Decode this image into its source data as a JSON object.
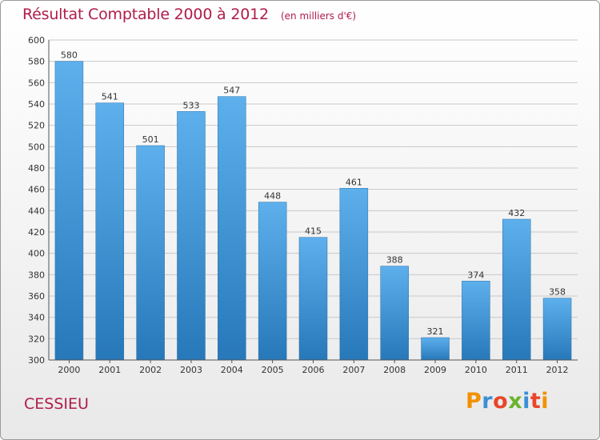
{
  "header": {
    "title": "Résultat Comptable 2000 à 2012",
    "subtitle": "(en milliers d'€)"
  },
  "footer": {
    "commune": "CESSIEU",
    "brand": "Proxiti",
    "brand_colors": [
      "#f29100",
      "#3a8fd6",
      "#e8462a",
      "#69b32d",
      "#3a8fd6",
      "#e8462a",
      "#f29100"
    ]
  },
  "colors": {
    "title": "#b11c4a",
    "bar_top": "#5db0ec",
    "bar_bottom": "#2778b9",
    "grid": "#c9c9c9",
    "axis": "#555555"
  },
  "chart_data": {
    "type": "bar",
    "title": "Résultat Comptable 2000 à 2012",
    "subtitle": "(en milliers d'€)",
    "xlabel": "",
    "ylabel": "",
    "categories": [
      "2000",
      "2001",
      "2002",
      "2003",
      "2004",
      "2005",
      "2006",
      "2007",
      "2008",
      "2009",
      "2010",
      "2011",
      "2012"
    ],
    "values": [
      580,
      541,
      501,
      533,
      547,
      448,
      415,
      461,
      388,
      321,
      374,
      432,
      358
    ],
    "ylim": [
      300,
      600
    ],
    "yticks": [
      300,
      320,
      340,
      360,
      380,
      400,
      420,
      440,
      460,
      480,
      500,
      520,
      540,
      560,
      580,
      600
    ],
    "grid": true,
    "legend": "none",
    "data_labels": true
  }
}
